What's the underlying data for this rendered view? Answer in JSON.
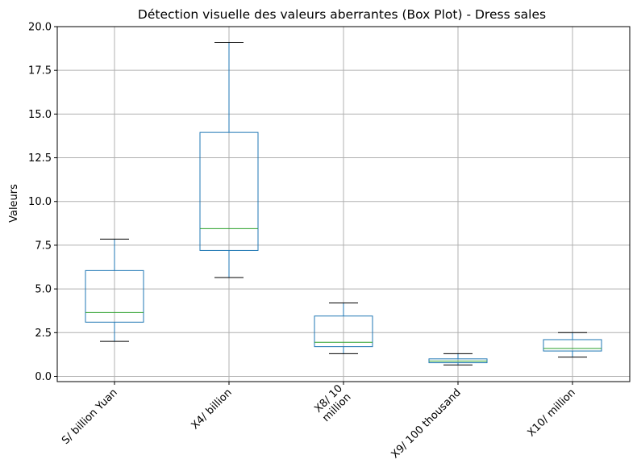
{
  "chart_data": {
    "type": "box",
    "title": "Détection visuelle des valeurs aberrantes (Box Plot) - Dress sales",
    "xlabel": "",
    "ylabel": "Valeurs",
    "ylim": [
      -0.3,
      20.0
    ],
    "yticks": [
      "0.0",
      "2.5",
      "5.0",
      "7.5",
      "10.0",
      "12.5",
      "15.0",
      "17.5",
      "20.0"
    ],
    "ytick_values": [
      0.0,
      2.5,
      5.0,
      7.5,
      10.0,
      12.5,
      15.0,
      17.5,
      20.0
    ],
    "grid": true,
    "tick_rotation_deg": 45,
    "categories": [
      [
        "S/ billion Yuan"
      ],
      [
        "X4/ billion"
      ],
      [
        "X8/ 10",
        "million"
      ],
      [
        "X9/ 100 thousand"
      ],
      [
        "X10/ million"
      ]
    ],
    "boxes": [
      {
        "whislo": 2.0,
        "q1": 3.1,
        "med": 3.65,
        "q3": 6.05,
        "whishi": 7.85
      },
      {
        "whislo": 5.65,
        "q1": 7.2,
        "med": 8.45,
        "q3": 13.95,
        "whishi": 19.1
      },
      {
        "whislo": 1.3,
        "q1": 1.7,
        "med": 1.95,
        "q3": 3.45,
        "whishi": 4.2
      },
      {
        "whislo": 0.65,
        "q1": 0.78,
        "med": 0.87,
        "q3": 1.0,
        "whishi": 1.3
      },
      {
        "whislo": 1.1,
        "q1": 1.45,
        "med": 1.6,
        "q3": 2.1,
        "whishi": 2.5
      }
    ],
    "colors": {
      "box": "#1f77b4",
      "median": "#2ca02c",
      "whisker_cap": "#000000",
      "grid": "#b0b0b0"
    }
  }
}
